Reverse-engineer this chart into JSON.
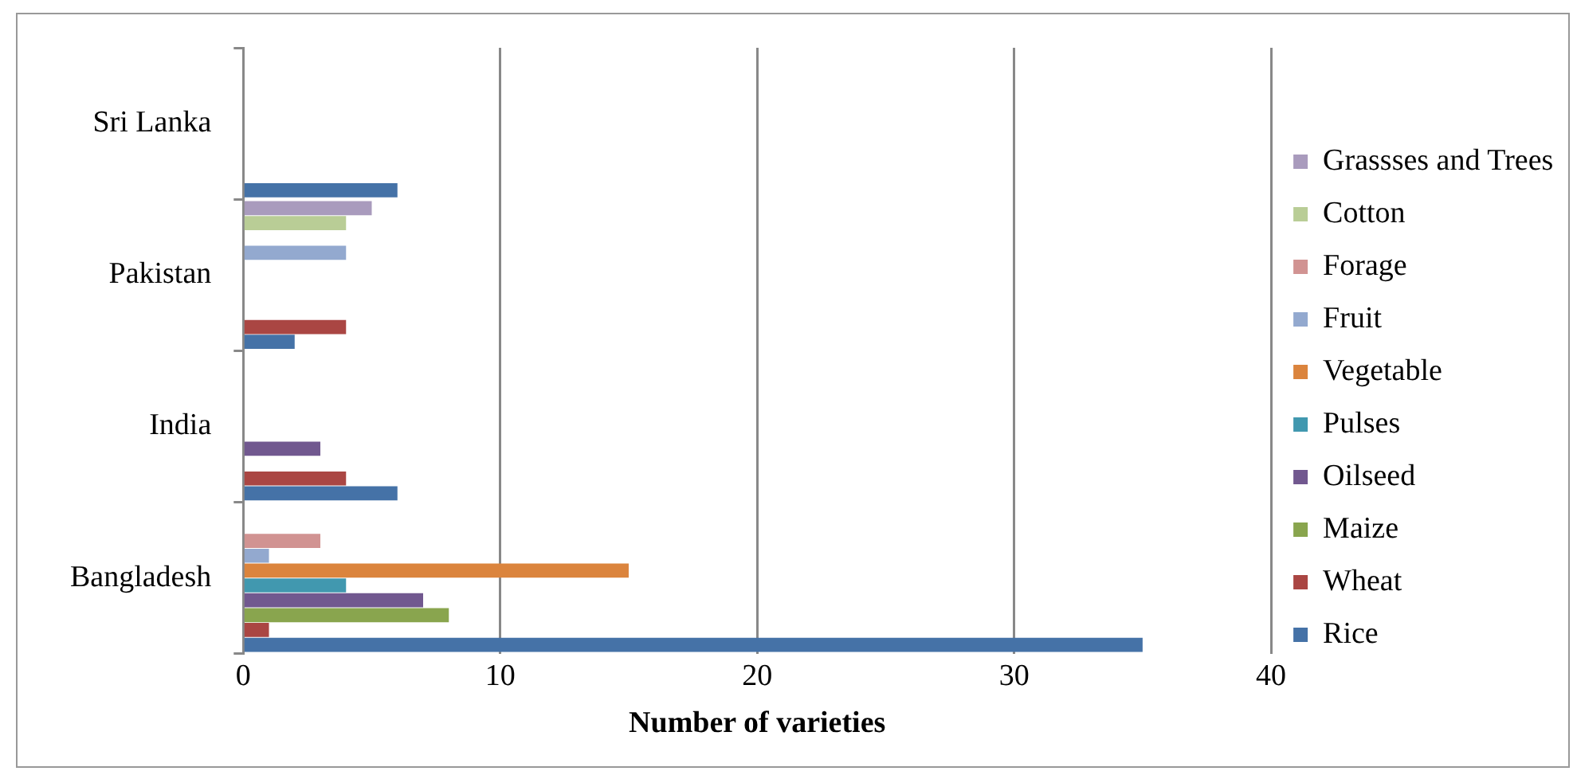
{
  "chart_data": {
    "type": "bar",
    "orientation": "horizontal",
    "xlabel": "Number of varieties",
    "categories": [
      "Sri Lanka",
      "Pakistan",
      "India",
      "Bangladesh"
    ],
    "series": [
      {
        "name": "Rice",
        "color": "#4572a7",
        "values": [
          6,
          2,
          6,
          35
        ]
      },
      {
        "name": "Wheat",
        "color": "#aa4643",
        "values": [
          null,
          4,
          4,
          1
        ]
      },
      {
        "name": "Maize",
        "color": "#89a54e",
        "values": [
          null,
          null,
          null,
          8
        ]
      },
      {
        "name": "Oilseed",
        "color": "#71588f",
        "values": [
          null,
          null,
          3,
          7
        ]
      },
      {
        "name": "Pulses",
        "color": "#4198af",
        "values": [
          null,
          null,
          null,
          4
        ]
      },
      {
        "name": "Vegetable",
        "color": "#db843d",
        "values": [
          null,
          null,
          null,
          15
        ]
      },
      {
        "name": "Fruit",
        "color": "#93a9cf",
        "values": [
          null,
          4,
          null,
          1
        ]
      },
      {
        "name": "Forage",
        "color": "#d19392",
        "values": [
          null,
          null,
          null,
          3
        ]
      },
      {
        "name": "Cotton",
        "color": "#b9cd96",
        "values": [
          null,
          4,
          null,
          null
        ]
      },
      {
        "name": "Grassses and Trees",
        "color": "#a99bbd",
        "values": [
          null,
          5,
          null,
          null
        ]
      }
    ],
    "xlim": [
      0,
      40
    ],
    "xticks": [
      0,
      10,
      20,
      30,
      40
    ],
    "grid": "x",
    "legend": "right"
  }
}
